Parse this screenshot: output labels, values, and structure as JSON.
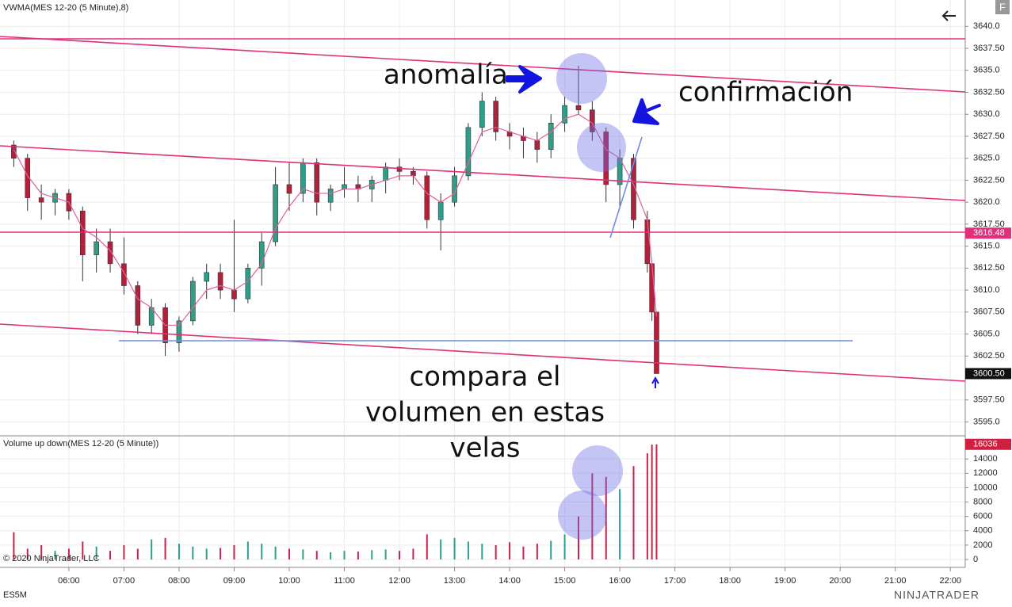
{
  "chart_data": [
    {
      "type": "candlestick",
      "title": "VWMA(MES 12-20 (5 Minute),8)",
      "x": [
        5,
        5.25,
        5.5,
        5.75,
        6,
        6.25,
        6.5,
        6.75,
        7,
        7.25,
        7.5,
        7.75,
        8,
        8.25,
        8.5,
        8.75,
        9,
        9.25,
        9.5,
        9.75,
        10,
        10.25,
        10.5,
        10.75,
        11,
        11.25,
        11.5,
        11.75,
        12,
        12.25,
        12.5,
        12.75,
        13,
        13.25,
        13.5,
        13.75,
        14,
        14.25,
        14.5,
        14.75,
        15,
        15.25,
        15.5,
        15.75,
        16,
        16.25,
        16.5,
        16.583,
        16.667
      ],
      "open": [
        3626.5,
        3625,
        3620.5,
        3620,
        3621,
        3619,
        3614,
        3615.5,
        3613,
        3610.5,
        3606,
        3608,
        3604,
        3606.5,
        3611,
        3612,
        3610,
        3609,
        3612.5,
        3615.5,
        3622,
        3621,
        3624.5,
        3620,
        3621.5,
        3622,
        3621.5,
        3622.5,
        3624,
        3623.5,
        3623,
        3618,
        3620,
        3623,
        3628.5,
        3631.5,
        3628,
        3627.5,
        3627,
        3626,
        3629,
        3631,
        3630.5,
        3628,
        3622,
        3625,
        3618,
        3613,
        3607.5
      ],
      "high": [
        3627,
        3625.5,
        3622,
        3621.5,
        3621.5,
        3619.5,
        3617,
        3617,
        3616,
        3611,
        3609,
        3608.5,
        3607,
        3611.5,
        3613,
        3613,
        3618,
        3613,
        3616.5,
        3624,
        3624.5,
        3625,
        3625,
        3622,
        3624,
        3623,
        3623,
        3624.5,
        3625,
        3624,
        3623.5,
        3621,
        3624,
        3629,
        3632.5,
        3632,
        3629,
        3628.5,
        3628,
        3630,
        3632,
        3635.5,
        3631.5,
        3628.5,
        3626,
        3625.5,
        3619,
        3613,
        3607.5
      ],
      "low": [
        3624,
        3619,
        3618,
        3618.5,
        3618,
        3611,
        3612,
        3612,
        3609.5,
        3605,
        3605,
        3602.5,
        3603,
        3606,
        3609,
        3609,
        3607.5,
        3608.5,
        3610.5,
        3615,
        3619,
        3620,
        3618.5,
        3619,
        3620.5,
        3620,
        3620,
        3621,
        3622.5,
        3622,
        3617,
        3614.5,
        3619.5,
        3622.5,
        3627.5,
        3627,
        3626,
        3625,
        3624.5,
        3625,
        3628,
        3630,
        3627,
        3620,
        3619.5,
        3617,
        3612,
        3606.5,
        3600.5
      ],
      "close": [
        3625,
        3620.5,
        3620,
        3621,
        3619,
        3614,
        3615.5,
        3613,
        3610.5,
        3606,
        3608,
        3604,
        3606.5,
        3611,
        3612,
        3610,
        3609,
        3612.5,
        3615.5,
        3622,
        3621,
        3624.5,
        3620,
        3621.5,
        3622,
        3621.5,
        3622.5,
        3624,
        3623.5,
        3623,
        3618,
        3620,
        3623,
        3628.5,
        3631.5,
        3628,
        3627.5,
        3627,
        3626,
        3629,
        3631,
        3630.5,
        3628,
        3622,
        3625,
        3618,
        3613,
        3607.5,
        3600.5
      ],
      "vwma": [
        3626,
        3623,
        3621,
        3620.5,
        3620,
        3617,
        3616,
        3614.5,
        3612,
        3609,
        3608,
        3606,
        3606,
        3608,
        3610,
        3610.5,
        3610,
        3611,
        3613,
        3617,
        3619.5,
        3621.5,
        3621,
        3621,
        3621.5,
        3621.5,
        3622,
        3622.5,
        3623,
        3623,
        3621,
        3620,
        3621,
        3624.5,
        3628,
        3628.5,
        3628,
        3627.5,
        3627,
        3628,
        3629.5,
        3630,
        3629,
        3626,
        3625,
        3622,
        3618,
        3613,
        3607
      ],
      "up_color": "#2e9e88",
      "down_color": "#b3203c",
      "vwma_color": "#e0609a",
      "xlim": [
        4.75,
        22.27
      ],
      "ylim": [
        3593.6,
        3643.0
      ],
      "yticks": [
        {
          "value": 3595,
          "label": "3595.0"
        },
        {
          "value": 3597.5,
          "label": "3597.50"
        },
        {
          "value": 3602.5,
          "label": "3602.50"
        },
        {
          "value": 3605,
          "label": "3605.0"
        },
        {
          "value": 3607.5,
          "label": "3607.50"
        },
        {
          "value": 3610,
          "label": "3610.0"
        },
        {
          "value": 3612.5,
          "label": "3612.50"
        },
        {
          "value": 3615,
          "label": "3615.0"
        },
        {
          "value": 3617.5,
          "label": "3617.50"
        },
        {
          "value": 3620,
          "label": "3620.0"
        },
        {
          "value": 3622.5,
          "label": "3622.50"
        },
        {
          "value": 3625,
          "label": "3625.0"
        },
        {
          "value": 3627.5,
          "label": "3627.50"
        },
        {
          "value": 3630,
          "label": "3630.0"
        },
        {
          "value": 3632.5,
          "label": "3632.50"
        },
        {
          "value": 3635,
          "label": "3635.0"
        },
        {
          "value": 3637.5,
          "label": "3637.50"
        },
        {
          "value": 3640,
          "label": "3640.0"
        }
      ],
      "grid": true,
      "price_markers": [
        {
          "value": 3616.48,
          "color": "#e0307a"
        },
        {
          "value": 3600.5,
          "label": "3600.50",
          "color": "#111111"
        }
      ]
    },
    {
      "type": "bar",
      "title": "Volume up down(MES 12-20 (5 Minute))",
      "x": [
        5,
        5.25,
        5.5,
        5.75,
        6,
        6.25,
        6.5,
        6.75,
        7,
        7.25,
        7.5,
        7.75,
        8,
        8.25,
        8.5,
        8.75,
        9,
        9.25,
        9.5,
        9.75,
        10,
        10.25,
        10.5,
        10.75,
        11,
        11.25,
        11.5,
        11.75,
        12,
        12.25,
        12.5,
        12.75,
        13,
        13.25,
        13.5,
        13.75,
        14,
        14.25,
        14.5,
        14.75,
        15,
        15.25,
        15.5,
        15.75,
        16,
        16.25,
        16.5,
        16.583,
        16.667
      ],
      "values": [
        3800,
        1500,
        2000,
        1200,
        1500,
        2500,
        1800,
        1200,
        2000,
        1500,
        2800,
        3000,
        2200,
        1800,
        1500,
        1600,
        2000,
        2500,
        2200,
        1800,
        1500,
        1400,
        1200,
        1000,
        1200,
        1100,
        1300,
        1400,
        1200,
        1500,
        3500,
        2800,
        3000,
        2500,
        2200,
        2000,
        2400,
        1800,
        2200,
        2600,
        3500,
        6000,
        12000,
        11500,
        9800,
        13000,
        14800,
        16000,
        16036
      ],
      "up_color": "#2aa08a",
      "down_color": "#c8234a",
      "xlim": [
        4.75,
        22.27
      ],
      "ylim": [
        -1100,
        17000
      ],
      "yticks": [
        0,
        2000,
        4000,
        6000,
        8000,
        10000,
        12000,
        14000
      ],
      "xticks": [
        {
          "value": 6,
          "label": "06:00"
        },
        {
          "value": 7,
          "label": "07:00"
        },
        {
          "value": 8,
          "label": "08:00"
        },
        {
          "value": 9,
          "label": "09:00"
        },
        {
          "value": 10,
          "label": "10:00"
        },
        {
          "value": 11,
          "label": "11:00"
        },
        {
          "value": 12,
          "label": "12:00"
        },
        {
          "value": 13,
          "label": "13:00"
        },
        {
          "value": 14,
          "label": "14:00"
        },
        {
          "value": 15,
          "label": "15:00"
        },
        {
          "value": 16,
          "label": "16:00"
        },
        {
          "value": 17,
          "label": "17:00"
        },
        {
          "value": 18,
          "label": "18:00"
        },
        {
          "value": 19,
          "label": "19:00"
        },
        {
          "value": 20,
          "label": "20:00"
        },
        {
          "value": 21,
          "label": "21:00"
        },
        {
          "value": 22,
          "label": "22:00"
        }
      ],
      "grid": true,
      "price_markers": [
        {
          "value": 16036,
          "color": "#d0203f"
        }
      ]
    }
  ],
  "annotations": {
    "anomaly": "anomalía",
    "confirmation": "confirmación",
    "compare": [
      "compara el",
      "volumen en estas",
      "velas"
    ]
  },
  "footer": {
    "copyright": "© 2020 NinjaTrader, LLC",
    "instrument": "ES5M",
    "brand": "NINJATRADER",
    "button": "F"
  }
}
